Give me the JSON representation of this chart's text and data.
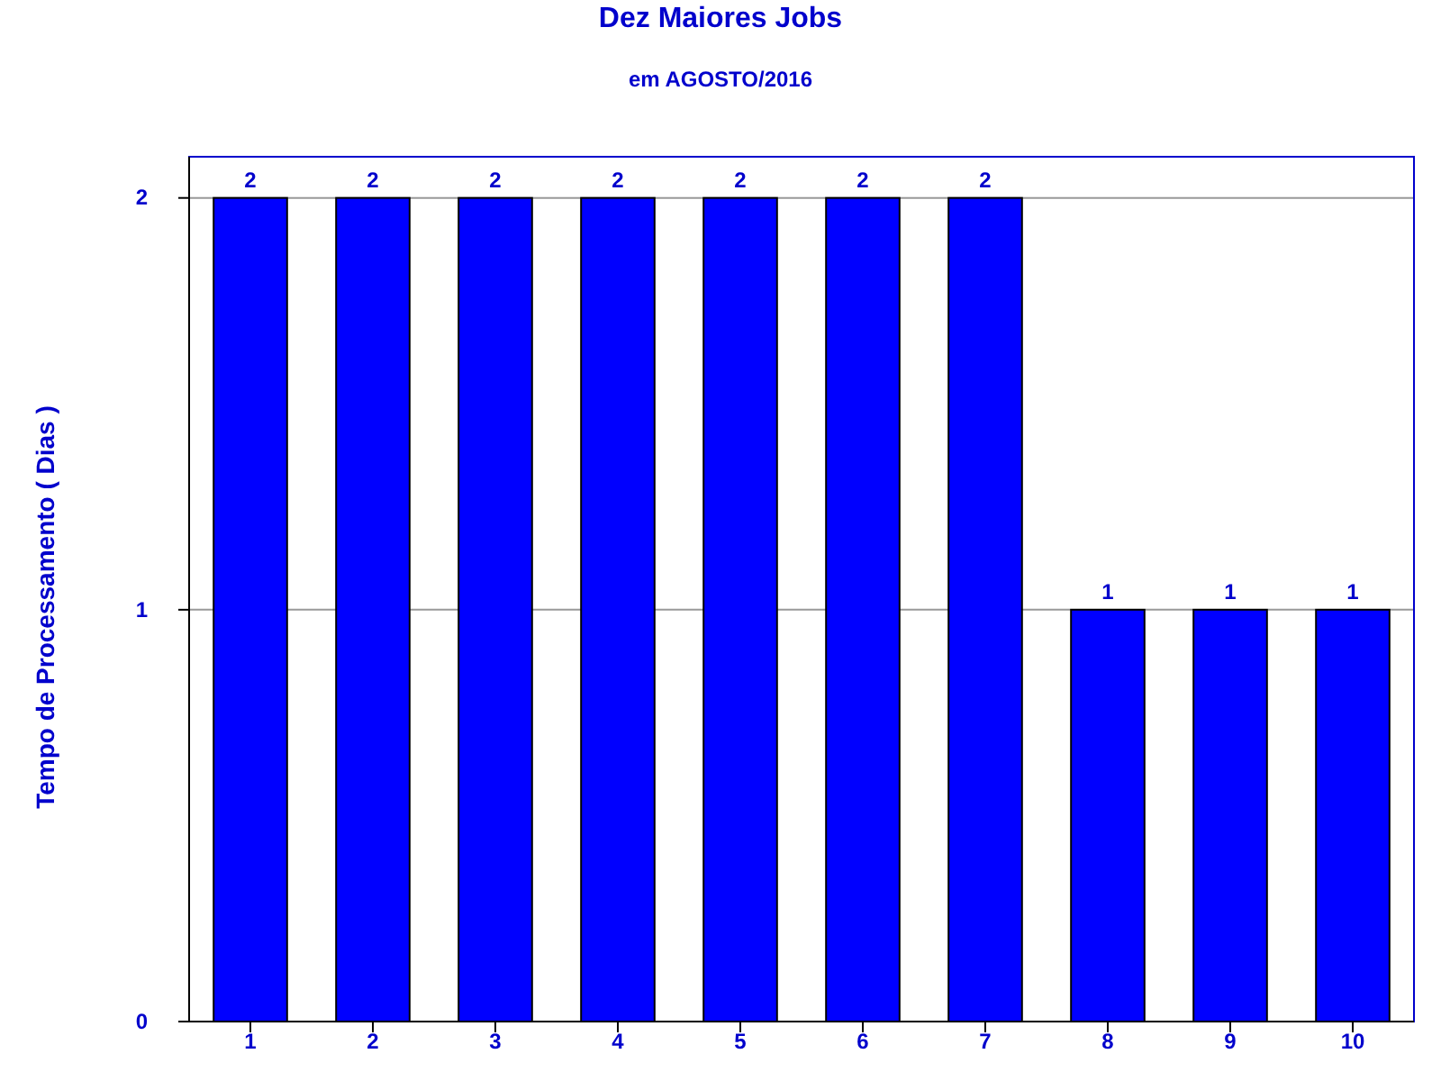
{
  "chart_data": {
    "type": "bar",
    "title": "Dez Maiores Jobs",
    "subtitle": "em AGOSTO/2016",
    "ylabel": "Tempo de Processamento ( Dias )",
    "categories": [
      "1",
      "2",
      "3",
      "4",
      "5",
      "6",
      "7",
      "8",
      "9",
      "10"
    ],
    "values": [
      2,
      2,
      2,
      2,
      2,
      2,
      2,
      1,
      1,
      1
    ],
    "color": "#0000ff",
    "ylim": [
      0,
      2.1
    ],
    "yticks": [
      0,
      1,
      2
    ],
    "grid": "y",
    "data_labels": true
  }
}
